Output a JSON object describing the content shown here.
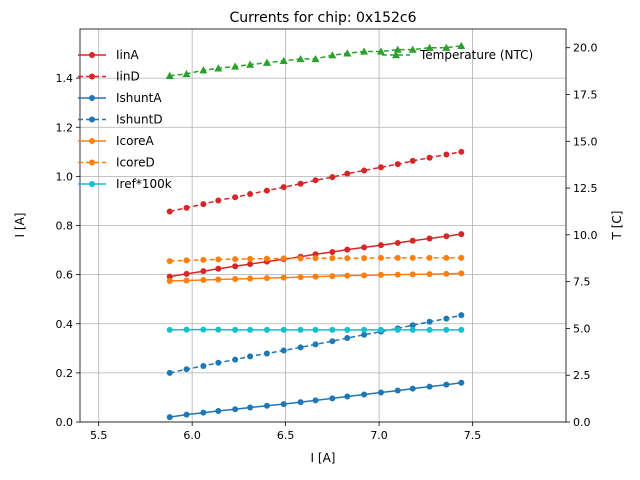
{
  "chart_data": {
    "type": "line",
    "title": "Currents for chip: 0x152c6",
    "xlabel": "I [A]",
    "ylabel": "I [A]",
    "y2label": "T [C]",
    "xlim": [
      5.4,
      8.0
    ],
    "ylim": [
      0.0,
      1.6
    ],
    "y2lim": [
      0.0,
      21.0
    ],
    "xticks": [
      "5.5",
      "6.0",
      "6.5",
      "7.0",
      "7.5"
    ],
    "xtick_values": [
      5.5,
      6.0,
      6.5,
      7.0,
      7.5
    ],
    "yticks": [
      "0.0",
      "0.2",
      "0.4",
      "0.6",
      "0.8",
      "1.0",
      "1.2",
      "1.4"
    ],
    "ytick_values": [
      0.0,
      0.2,
      0.4,
      0.6,
      0.8,
      1.0,
      1.2,
      1.4
    ],
    "y2ticks": [
      "0.0",
      "2.5",
      "5.0",
      "7.5",
      "10.0",
      "12.5",
      "15.0",
      "17.5",
      "20.0"
    ],
    "y2tick_values": [
      0.0,
      2.5,
      5.0,
      7.5,
      10.0,
      12.5,
      15.0,
      17.5,
      20.0
    ],
    "grid": true,
    "legend_position": "top-left",
    "legend2_position": "top-right",
    "x": [
      5.88,
      5.97,
      6.06,
      6.14,
      6.23,
      6.31,
      6.4,
      6.49,
      6.58,
      6.66,
      6.75,
      6.83,
      6.92,
      7.01,
      7.1,
      7.18,
      7.27,
      7.36,
      7.44
    ],
    "series": [
      {
        "name": "IinA",
        "axis": "left",
        "color": "#d62728",
        "dashed": false,
        "marker": "circle",
        "values": [
          0.592,
          0.603,
          0.614,
          0.624,
          0.634,
          0.643,
          0.653,
          0.663,
          0.673,
          0.683,
          0.692,
          0.702,
          0.711,
          0.72,
          0.729,
          0.738,
          0.747,
          0.756,
          0.765
        ]
      },
      {
        "name": "IinD",
        "axis": "left",
        "color": "#d62728",
        "dashed": true,
        "marker": "circle",
        "values": [
          0.857,
          0.872,
          0.887,
          0.902,
          0.915,
          0.928,
          0.942,
          0.956,
          0.97,
          0.984,
          0.997,
          1.011,
          1.024,
          1.037,
          1.05,
          1.063,
          1.076,
          1.089,
          1.1
        ]
      },
      {
        "name": "IshuntA",
        "axis": "left",
        "color": "#1f77b4",
        "dashed": false,
        "marker": "circle",
        "values": [
          0.02,
          0.03,
          0.038,
          0.045,
          0.052,
          0.059,
          0.066,
          0.073,
          0.081,
          0.088,
          0.096,
          0.104,
          0.112,
          0.12,
          0.128,
          0.136,
          0.144,
          0.152,
          0.16
        ]
      },
      {
        "name": "IshuntD",
        "axis": "left",
        "color": "#1f77b4",
        "dashed": true,
        "marker": "circle",
        "values": [
          0.2,
          0.215,
          0.228,
          0.241,
          0.254,
          0.267,
          0.279,
          0.291,
          0.304,
          0.316,
          0.329,
          0.342,
          0.355,
          0.368,
          0.381,
          0.394,
          0.408,
          0.421,
          0.435
        ]
      },
      {
        "name": "IcoreA",
        "axis": "left",
        "color": "#ff7f0e",
        "dashed": false,
        "marker": "circle",
        "values": [
          0.574,
          0.576,
          0.578,
          0.58,
          0.582,
          0.584,
          0.586,
          0.588,
          0.59,
          0.592,
          0.594,
          0.596,
          0.597,
          0.599,
          0.6,
          0.601,
          0.602,
          0.603,
          0.605
        ]
      },
      {
        "name": "IcoreD",
        "axis": "left",
        "color": "#ff7f0e",
        "dashed": true,
        "marker": "circle",
        "values": [
          0.655,
          0.658,
          0.66,
          0.662,
          0.663,
          0.664,
          0.665,
          0.666,
          0.666,
          0.667,
          0.667,
          0.667,
          0.667,
          0.668,
          0.668,
          0.668,
          0.668,
          0.668,
          0.668
        ]
      },
      {
        "name": "Iref*100k",
        "axis": "left",
        "color": "#17becf",
        "dashed": false,
        "marker": "circle",
        "values": [
          0.375,
          0.376,
          0.376,
          0.376,
          0.375,
          0.375,
          0.375,
          0.375,
          0.375,
          0.375,
          0.375,
          0.375,
          0.375,
          0.375,
          0.375,
          0.375,
          0.375,
          0.375,
          0.375
        ]
      }
    ],
    "series2": [
      {
        "name": "Temperature (NTC)",
        "axis": "right",
        "color": "#2ca02c",
        "dashed": true,
        "marker": "triangle",
        "values": [
          18.5,
          18.6,
          18.8,
          18.9,
          19.0,
          19.1,
          19.2,
          19.3,
          19.4,
          19.4,
          19.6,
          19.7,
          19.8,
          19.8,
          19.9,
          19.9,
          20.0,
          20.0,
          20.1
        ]
      }
    ]
  }
}
